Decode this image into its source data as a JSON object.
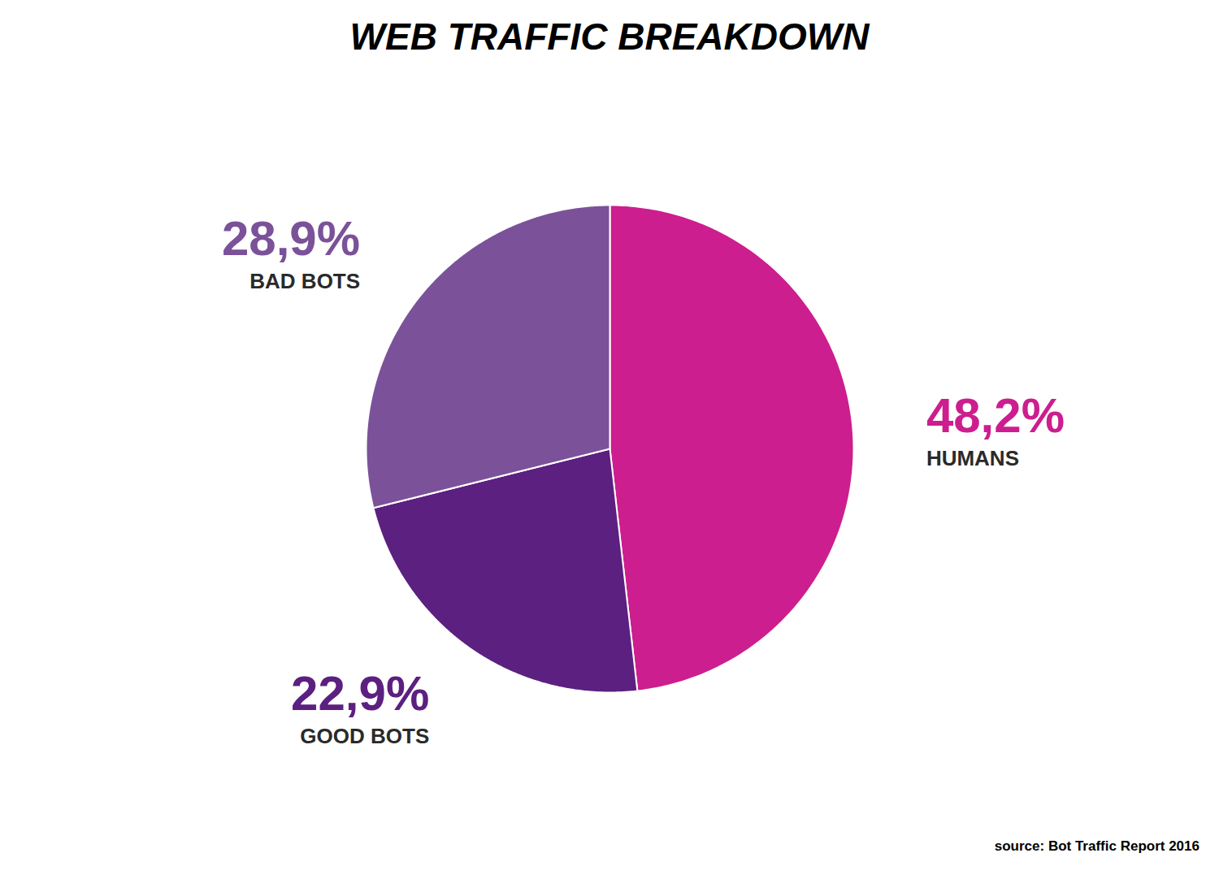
{
  "chart_data": {
    "type": "pie",
    "title": "WEB TRAFFIC BREAKDOWN",
    "categories": [
      "HUMANS",
      "GOOD BOTS",
      "BAD BOTS"
    ],
    "values": [
      48.2,
      22.9,
      28.9
    ],
    "value_labels": [
      "48,2%",
      "22,9%",
      "28,9%"
    ],
    "colors": [
      "#cc1e8e",
      "#5c2080",
      "#7b5299"
    ],
    "data_labels": true,
    "annotations": [
      "source: Bot Traffic Report 2016"
    ]
  }
}
